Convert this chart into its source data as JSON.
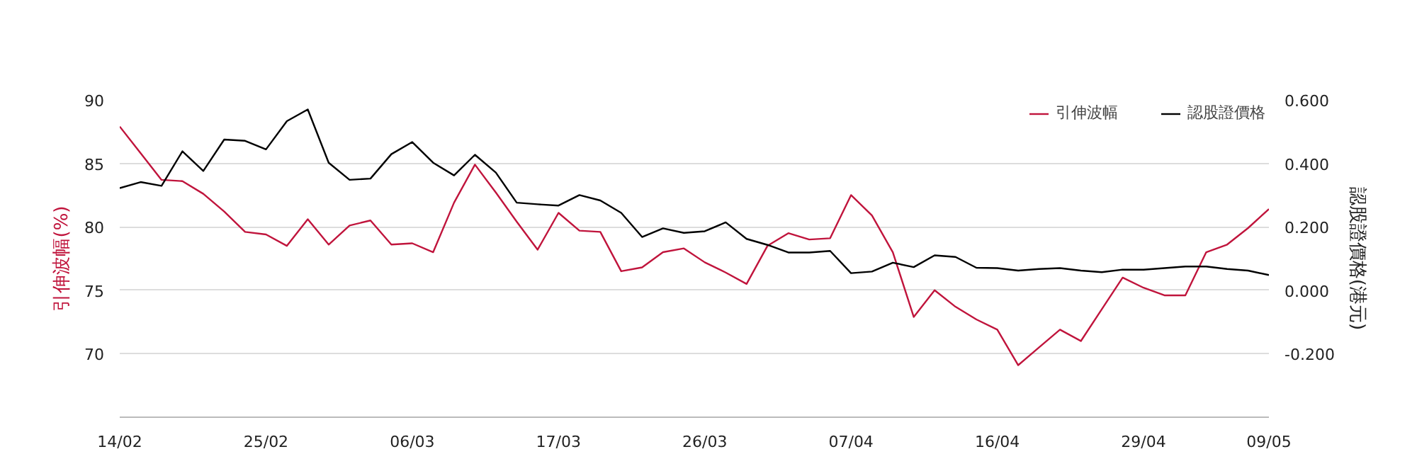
{
  "chart_data": {
    "type": "line",
    "categories": [
      "14/02",
      null,
      null,
      null,
      null,
      null,
      null,
      "25/02",
      null,
      null,
      null,
      null,
      null,
      null,
      "06/03",
      null,
      null,
      null,
      null,
      null,
      null,
      "17/03",
      null,
      null,
      null,
      null,
      null,
      null,
      "26/03",
      null,
      null,
      null,
      null,
      null,
      null,
      "07/04",
      null,
      null,
      null,
      null,
      null,
      null,
      "16/04",
      null,
      null,
      null,
      null,
      null,
      null,
      "29/04",
      null,
      null,
      null,
      null,
      null,
      "09/05"
    ],
    "series": [
      {
        "name": "引伸波幅",
        "color": "#c0143c",
        "values": [
          87.9,
          85.8,
          83.7,
          83.6,
          82.6,
          81.2,
          79.6,
          79.4,
          78.5,
          80.6,
          78.6,
          80.1,
          80.5,
          78.6,
          78.7,
          78.0,
          81.9,
          84.9,
          82.7,
          80.4,
          78.2,
          81.1,
          79.7,
          79.6,
          76.5,
          76.8,
          78.0,
          78.3,
          77.2,
          76.4,
          75.5,
          78.5,
          79.5,
          79.0,
          79.1,
          82.5,
          80.9,
          78.0,
          72.9,
          75.0,
          73.7,
          72.7,
          71.9,
          69.1,
          70.5,
          71.9,
          71.0,
          73.5,
          76.0,
          75.2,
          74.6,
          74.6,
          78.0,
          78.6,
          79.9,
          81.4
        ]
      },
      {
        "name": "認股證價格",
        "color": "#000000",
        "axis": "y2",
        "values": [
          0.322,
          0.341,
          0.329,
          0.438,
          0.376,
          0.475,
          0.471,
          0.444,
          0.533,
          0.57,
          0.402,
          0.348,
          0.352,
          0.429,
          0.467,
          0.402,
          0.362,
          0.427,
          0.371,
          0.276,
          0.271,
          0.267,
          0.3,
          0.283,
          0.244,
          0.168,
          0.195,
          0.181,
          0.186,
          0.214,
          0.162,
          0.143,
          0.119,
          0.119,
          0.124,
          0.054,
          0.059,
          0.087,
          0.073,
          0.11,
          0.105,
          0.071,
          0.07,
          0.062,
          0.067,
          0.07,
          0.062,
          0.057,
          0.065,
          0.065,
          0.07,
          0.075,
          0.075,
          0.067,
          0.062,
          0.048
        ]
      }
    ],
    "ylabel": "引伸波幅(%)",
    "y2label": "認股證價格(港元)",
    "ylim": [
      65,
      90
    ],
    "yticks": [
      70,
      75,
      80,
      85,
      90
    ],
    "y2lim": [
      -0.4,
      0.6
    ],
    "y2ticks": [
      {
        "value": -0.2,
        "label": "-0.200"
      },
      {
        "value": 0.0,
        "label": "0.000"
      },
      {
        "value": 0.2,
        "label": "0.200"
      },
      {
        "value": 0.4,
        "label": "0.400"
      },
      {
        "value": 0.6,
        "label": "0.600"
      }
    ],
    "grid": "y",
    "legend": "top right",
    "marker": "none",
    "line_style": "solid"
  }
}
